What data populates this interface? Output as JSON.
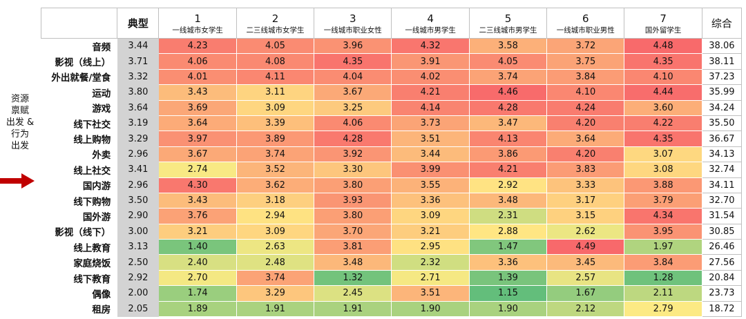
{
  "side_label": [
    "资源",
    "禀赋",
    "出发 &",
    "行为",
    "出发"
  ],
  "chart_data": {
    "type": "heatmap",
    "header": {
      "typical": "典型",
      "total": "综合",
      "segments": [
        {
          "num": "1",
          "name": "一线城市女学生"
        },
        {
          "num": "2",
          "name": "二三线城市女学生"
        },
        {
          "num": "3",
          "name": "一线城市职业女性"
        },
        {
          "num": "4",
          "name": "一线城市男学生"
        },
        {
          "num": "5",
          "name": "二三线城市男学生"
        },
        {
          "num": "6",
          "name": "一线城市职业男性"
        },
        {
          "num": "7",
          "name": "国外留学生"
        }
      ]
    },
    "rows": [
      {
        "label": "音频",
        "typical": "3.44",
        "values": [
          "4.23",
          "4.05",
          "3.96",
          "4.32",
          "3.58",
          "3.72",
          "4.48"
        ],
        "total": "38.06"
      },
      {
        "label": "影视（线上）",
        "typical": "3.71",
        "values": [
          "4.06",
          "4.08",
          "4.35",
          "3.91",
          "4.05",
          "3.75",
          "4.35"
        ],
        "total": "38.11"
      },
      {
        "label": "外出就餐/堂食",
        "typical": "3.32",
        "values": [
          "4.01",
          "4.11",
          "4.04",
          "4.02",
          "3.74",
          "3.84",
          "4.10"
        ],
        "total": "37.23"
      },
      {
        "label": "运动",
        "typical": "3.80",
        "values": [
          "3.43",
          "3.11",
          "3.67",
          "4.21",
          "4.46",
          "4.10",
          "4.44"
        ],
        "total": "35.99"
      },
      {
        "label": "游戏",
        "typical": "3.64",
        "values": [
          "3.69",
          "3.09",
          "3.25",
          "4.14",
          "4.28",
          "4.24",
          "3.60"
        ],
        "total": "34.24"
      },
      {
        "label": "线下社交",
        "typical": "3.19",
        "values": [
          "3.64",
          "3.39",
          "4.06",
          "3.73",
          "3.47",
          "4.20",
          "4.22"
        ],
        "total": "35.50"
      },
      {
        "label": "线上购物",
        "typical": "3.29",
        "values": [
          "3.97",
          "3.89",
          "4.28",
          "3.51",
          "4.13",
          "3.64",
          "4.35"
        ],
        "total": "36.67"
      },
      {
        "label": "外卖",
        "typical": "2.96",
        "values": [
          "3.67",
          "3.74",
          "3.92",
          "3.44",
          "3.86",
          "4.20",
          "3.07"
        ],
        "total": "34.13"
      },
      {
        "label": "线上社交",
        "typical": "3.41",
        "values": [
          "2.74",
          "3.52",
          "3.30",
          "3.99",
          "4.21",
          "3.83",
          "3.08"
        ],
        "total": "32.74"
      },
      {
        "label": "国内游",
        "typical": "2.96",
        "values": [
          "4.30",
          "3.62",
          "3.80",
          "3.55",
          "2.92",
          "3.33",
          "3.88"
        ],
        "total": "34.11"
      },
      {
        "label": "线下购物",
        "typical": "3.50",
        "values": [
          "3.43",
          "3.18",
          "3.93",
          "3.36",
          "3.48",
          "3.17",
          "3.79"
        ],
        "total": "32.70"
      },
      {
        "label": "国外游",
        "typical": "2.90",
        "values": [
          "3.76",
          "2.94",
          "3.80",
          "3.09",
          "2.31",
          "3.15",
          "4.34"
        ],
        "total": "31.54"
      },
      {
        "label": "影视（线下）",
        "typical": "3.00",
        "values": [
          "3.21",
          "3.09",
          "3.70",
          "3.21",
          "2.88",
          "2.62",
          "3.95"
        ],
        "total": "30.85"
      },
      {
        "label": "线上教育",
        "typical": "3.13",
        "values": [
          "1.40",
          "2.63",
          "3.81",
          "2.95",
          "1.47",
          "4.49",
          "1.97"
        ],
        "total": "26.46"
      },
      {
        "label": "家庭烧饭",
        "typical": "2.50",
        "values": [
          "2.40",
          "2.48",
          "3.48",
          "2.32",
          "3.36",
          "3.45",
          "3.84"
        ],
        "total": "27.56"
      },
      {
        "label": "线下教育",
        "typical": "2.92",
        "values": [
          "2.70",
          "3.74",
          "1.32",
          "2.71",
          "1.39",
          "2.57",
          "1.28"
        ],
        "total": "20.84"
      },
      {
        "label": "偶像",
        "typical": "2.00",
        "values": [
          "1.74",
          "3.29",
          "2.45",
          "3.51",
          "1.15",
          "1.67",
          "2.11"
        ],
        "total": "23.73"
      },
      {
        "label": "租房",
        "typical": "2.05",
        "values": [
          "1.89",
          "1.91",
          "1.91",
          "1.90",
          "1.90",
          "2.12",
          "2.79"
        ],
        "total": "18.72"
      }
    ],
    "color_scale": {
      "low": "#63be7b",
      "mid": "#ffeb84",
      "high": "#f8696b"
    }
  }
}
